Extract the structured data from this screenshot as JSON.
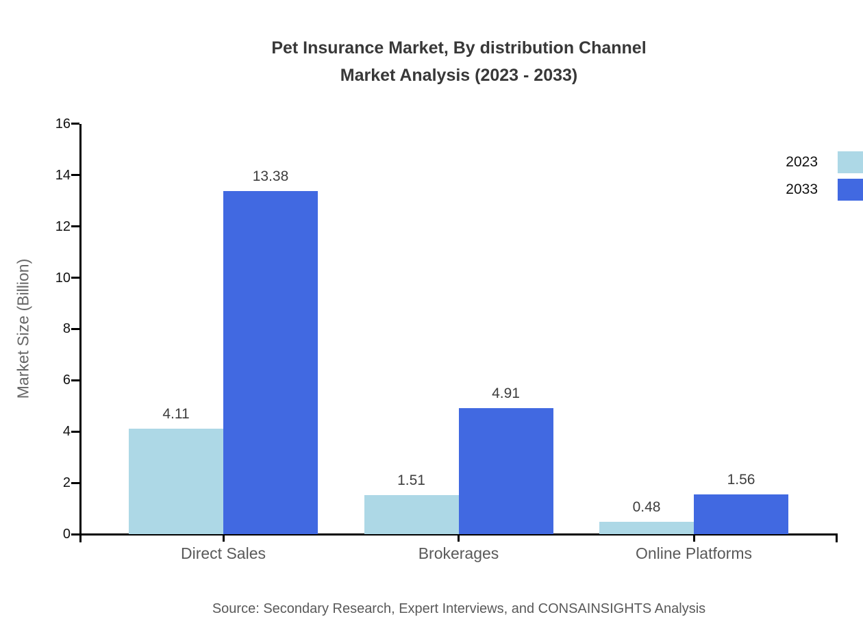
{
  "title": {
    "line1": "Pet Insurance Market, By distribution Channel",
    "line2": "Market Analysis (2023 - 2033)"
  },
  "source": "Source: Secondary Research, Expert Interviews, and CONSAINSIGHTS Analysis",
  "chart_data": {
    "type": "bar",
    "title": "Pet Insurance Market, By distribution Channel Market Analysis (2023 - 2033)",
    "categories": [
      "Direct Sales",
      "Brokerages",
      "Online Platforms"
    ],
    "series": [
      {
        "name": "2023",
        "color": "#add8e6",
        "values": [
          4.11,
          1.51,
          0.48
        ]
      },
      {
        "name": "2033",
        "color": "#4169e1",
        "values": [
          13.38,
          4.91,
          1.56
        ]
      }
    ],
    "xlabel": "",
    "ylabel": "Market Size (Billion)",
    "ylim": [
      0,
      16
    ],
    "ytick_step": 2,
    "yticks": [
      0,
      2,
      4,
      6,
      8,
      10,
      12,
      14,
      16
    ],
    "grid": false,
    "legend_position": "top-right",
    "value_labels": true,
    "axis_color": "#000000"
  }
}
